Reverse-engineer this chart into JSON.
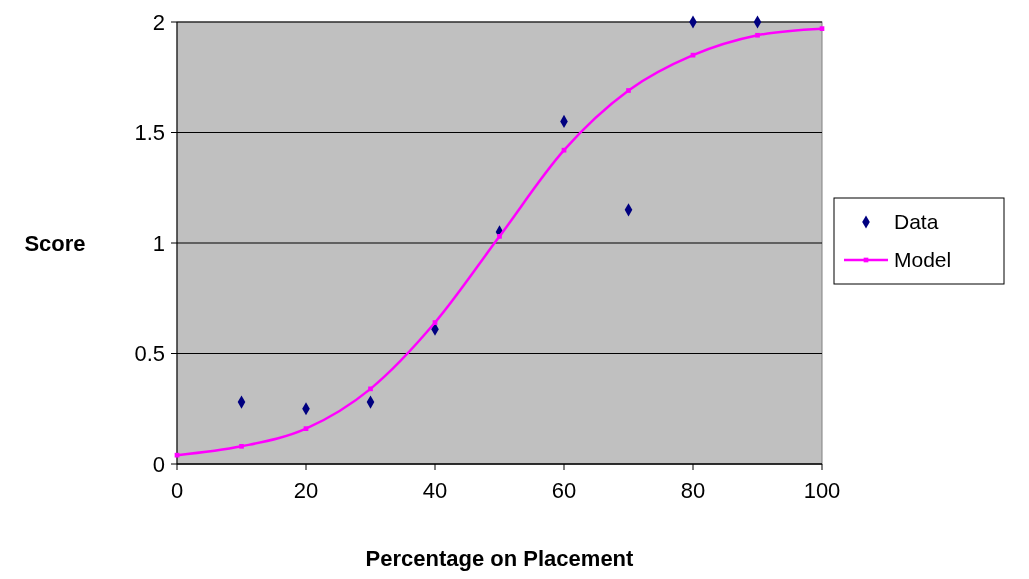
{
  "chart_data": {
    "type": "line",
    "xlabel": "Percentage on Placement",
    "ylabel": "Score",
    "xlim": [
      0,
      100
    ],
    "xticks": [
      0,
      20,
      40,
      60,
      80,
      100
    ],
    "ylim": [
      0,
      2
    ],
    "yticks": [
      0,
      0.5,
      1,
      1.5,
      2
    ],
    "grid": "y",
    "legend": "right",
    "series": [
      {
        "name": "Data",
        "type": "scatter",
        "marker": "diamond",
        "color": "#000080",
        "x": [
          10,
          20,
          30,
          40,
          50,
          60,
          70,
          80,
          90
        ],
        "values": [
          0.28,
          0.25,
          0.28,
          0.61,
          1.05,
          1.55,
          1.15,
          2,
          2
        ]
      },
      {
        "name": "Model",
        "marker": "square",
        "color": "#ff00ff",
        "x": [
          0,
          10,
          20,
          30,
          40,
          50,
          60,
          70,
          80,
          90,
          100
        ],
        "values": [
          0.04,
          0.08,
          0.16,
          0.34,
          0.64,
          1.03,
          1.42,
          1.69,
          1.85,
          1.94,
          1.97
        ]
      }
    ]
  }
}
